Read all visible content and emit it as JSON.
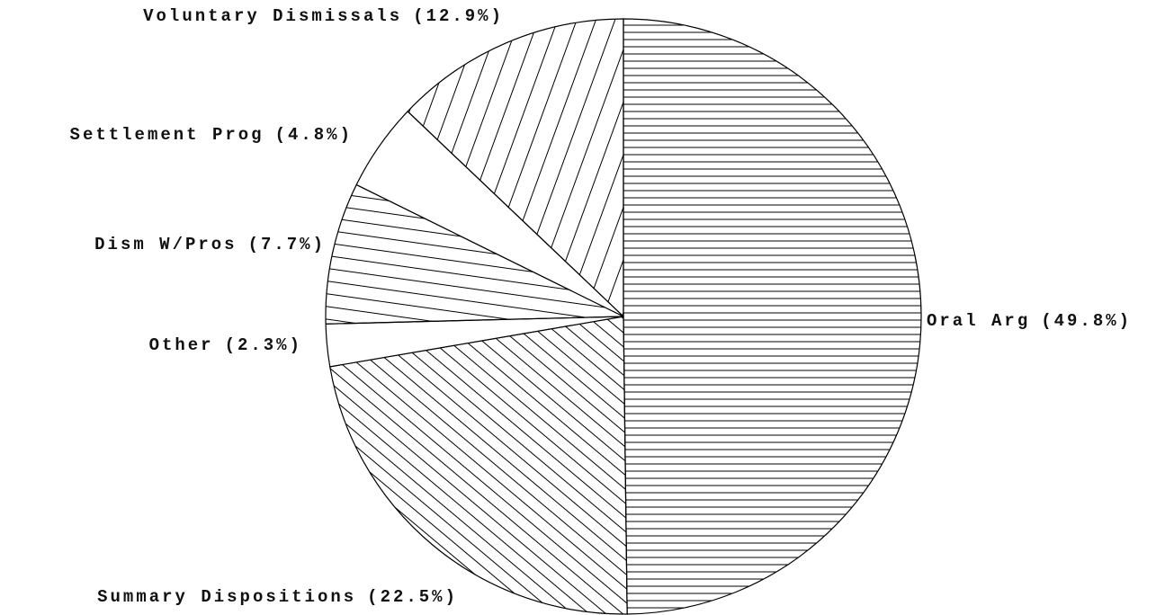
{
  "chart_data": {
    "type": "pie",
    "categories": [
      "Oral Arg",
      "Summary Dispositions",
      "Other",
      "Dism W/Pros",
      "Settlement Prog",
      "Voluntary Dismissals"
    ],
    "values": [
      49.8,
      22.5,
      2.3,
      7.7,
      4.8,
      12.9
    ],
    "value_labels": [
      "(49.8%)",
      "(22.5%)",
      "(2.3%)",
      "(7.7%)",
      "(4.8%)",
      "(12.9%)"
    ]
  }
}
